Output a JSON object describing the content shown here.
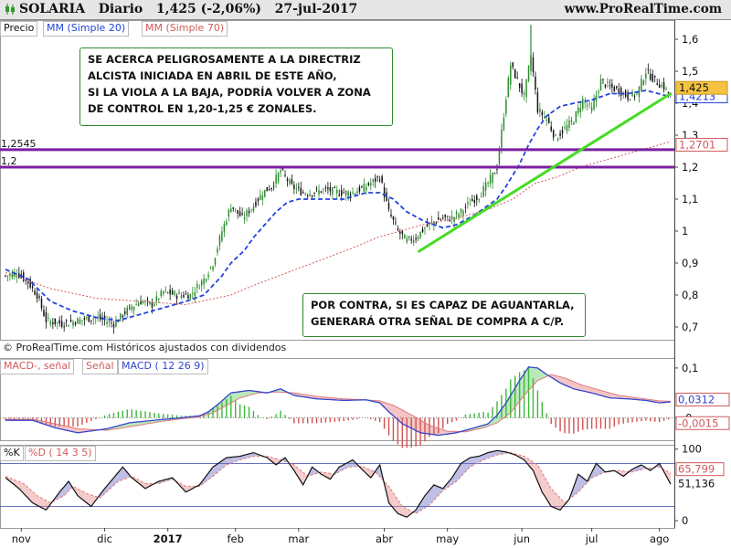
{
  "header": {
    "ticker": "SOLARIA",
    "period": "Diario",
    "price": "1,425 (-2,06%)",
    "date": "27-jul-2017",
    "site": "www.ProRealTime.com"
  },
  "legend_main": {
    "price": "Precio",
    "ma20": "MM (Simple 20)",
    "ma70": "MM (Simple 70)"
  },
  "legend_macd": {
    "hist": "MACD-, señal",
    "signal": "Señal",
    "macd": "MACD ( 12 26 9)"
  },
  "legend_stoch": {
    "k": "%K",
    "d": "%D ( 14 3 5)"
  },
  "copyright": "© ProRealTime.com  Históricos ajustados con dividendos",
  "notes": {
    "top": "SE ACERCA PELIGROSAMENTE A LA DIRECTRIZ\nALCISTA INICIADA EN ABRIL DE ESTE AÑO,\nSI LA VIOLA A LA BAJA, PODRÍA VOLVER A ZONA\nDE CONTROL EN 1,20-1,25 € ZONALES.",
    "bottom": "POR CONTRA, SI ES CAPAZ DE AGUANTARLA,\nGENERARÁ OTRA SEÑAL DE COMPRA A C/P."
  },
  "colors": {
    "up": "#2a8c2a",
    "down": "#111111",
    "ma20": "#2244dd",
    "ma70": "#d05a5a",
    "level": "#7a1fa0",
    "trend": "#44dd22",
    "macd": "#3344cc",
    "signal": "#e07a7a"
  },
  "chart_data": [
    {
      "type": "candlestick",
      "title": "SOLARIA Diario",
      "x_months": [
        "nov",
        "dic",
        "2017",
        "feb",
        "mar",
        "abr",
        "may",
        "jun",
        "jul",
        "ago"
      ],
      "y_ticks": [
        "0,7",
        "0,8",
        "0,9",
        "1",
        "1,1",
        "1,2",
        "1,3",
        "1,4",
        "1,5",
        "1,6"
      ],
      "ylim": [
        0.66,
        1.66
      ],
      "last_price": "1,425",
      "ma20_last": "1,4213",
      "ma70_last": "1,2701",
      "levels": [
        {
          "label": "1,2545",
          "value": 1.2545
        },
        {
          "label": "1,2",
          "value": 1.2
        }
      ],
      "trendline": {
        "from": {
          "date": "abr",
          "value": 0.935
        },
        "to": {
          "date": "jul",
          "value": 1.43
        }
      },
      "close_profile": [
        [
          0,
          0.86
        ],
        [
          5,
          0.87
        ],
        [
          10,
          0.84
        ],
        [
          14,
          0.8
        ],
        [
          18,
          0.72
        ],
        [
          25,
          0.71
        ],
        [
          32,
          0.72
        ],
        [
          40,
          0.73
        ],
        [
          48,
          0.71
        ],
        [
          55,
          0.76
        ],
        [
          60,
          0.78
        ],
        [
          65,
          0.77
        ],
        [
          70,
          0.81
        ],
        [
          76,
          0.8
        ],
        [
          82,
          0.8
        ],
        [
          88,
          0.85
        ],
        [
          92,
          0.9
        ],
        [
          96,
          1.0
        ],
        [
          100,
          1.08
        ],
        [
          105,
          1.04
        ],
        [
          110,
          1.08
        ],
        [
          114,
          1.12
        ],
        [
          118,
          1.14
        ],
        [
          122,
          1.19
        ],
        [
          127,
          1.14
        ],
        [
          132,
          1.12
        ],
        [
          136,
          1.12
        ],
        [
          142,
          1.13
        ],
        [
          148,
          1.12
        ],
        [
          154,
          1.12
        ],
        [
          160,
          1.14
        ],
        [
          166,
          1.17
        ],
        [
          170,
          1.06
        ],
        [
          174,
          1.0
        ],
        [
          178,
          0.97
        ],
        [
          182,
          0.98
        ],
        [
          186,
          1.01
        ],
        [
          190,
          1.03
        ],
        [
          194,
          1.04
        ],
        [
          198,
          1.04
        ],
        [
          202,
          1.06
        ],
        [
          206,
          1.09
        ],
        [
          210,
          1.11
        ],
        [
          214,
          1.15
        ],
        [
          218,
          1.2
        ],
        [
          222,
          1.42
        ],
        [
          224,
          1.52
        ],
        [
          227,
          1.47
        ],
        [
          230,
          1.42
        ],
        [
          233,
          1.55
        ],
        [
          236,
          1.38
        ],
        [
          240,
          1.35
        ],
        [
          244,
          1.29
        ],
        [
          248,
          1.32
        ],
        [
          252,
          1.35
        ],
        [
          256,
          1.41
        ],
        [
          260,
          1.38
        ],
        [
          264,
          1.47
        ],
        [
          268,
          1.45
        ],
        [
          272,
          1.44
        ],
        [
          276,
          1.42
        ],
        [
          280,
          1.43
        ],
        [
          284,
          1.5
        ],
        [
          288,
          1.47
        ],
        [
          292,
          1.45
        ],
        [
          295,
          1.42
        ]
      ],
      "ma20_profile": [
        [
          0,
          0.88
        ],
        [
          10,
          0.85
        ],
        [
          20,
          0.78
        ],
        [
          30,
          0.75
        ],
        [
          40,
          0.73
        ],
        [
          50,
          0.72
        ],
        [
          60,
          0.74
        ],
        [
          70,
          0.76
        ],
        [
          80,
          0.78
        ],
        [
          88,
          0.8
        ],
        [
          92,
          0.83
        ],
        [
          96,
          0.86
        ],
        [
          100,
          0.9
        ],
        [
          106,
          0.94
        ],
        [
          110,
          0.98
        ],
        [
          115,
          1.02
        ],
        [
          120,
          1.06
        ],
        [
          125,
          1.09
        ],
        [
          130,
          1.1
        ],
        [
          135,
          1.1
        ],
        [
          140,
          1.1
        ],
        [
          150,
          1.1
        ],
        [
          160,
          1.12
        ],
        [
          166,
          1.12
        ],
        [
          172,
          1.1
        ],
        [
          178,
          1.06
        ],
        [
          186,
          1.03
        ],
        [
          194,
          1.01
        ],
        [
          200,
          1.02
        ],
        [
          208,
          1.05
        ],
        [
          214,
          1.08
        ],
        [
          218,
          1.1
        ],
        [
          222,
          1.14
        ],
        [
          228,
          1.21
        ],
        [
          232,
          1.27
        ],
        [
          236,
          1.32
        ],
        [
          240,
          1.36
        ],
        [
          246,
          1.39
        ],
        [
          252,
          1.4
        ],
        [
          260,
          1.41
        ],
        [
          268,
          1.43
        ],
        [
          276,
          1.43
        ],
        [
          284,
          1.44
        ],
        [
          295,
          1.42
        ]
      ],
      "ma70_profile": [
        [
          0,
          0.87
        ],
        [
          20,
          0.82
        ],
        [
          40,
          0.79
        ],
        [
          60,
          0.78
        ],
        [
          80,
          0.77
        ],
        [
          100,
          0.8
        ],
        [
          110,
          0.83
        ],
        [
          125,
          0.87
        ],
        [
          140,
          0.91
        ],
        [
          155,
          0.95
        ],
        [
          165,
          0.98
        ],
        [
          175,
          1.0
        ],
        [
          185,
          1.02
        ],
        [
          200,
          1.04
        ],
        [
          215,
          1.07
        ],
        [
          225,
          1.1
        ],
        [
          235,
          1.15
        ],
        [
          245,
          1.17
        ],
        [
          255,
          1.2
        ],
        [
          265,
          1.22
        ],
        [
          275,
          1.24
        ],
        [
          285,
          1.26
        ],
        [
          295,
          1.28
        ]
      ]
    },
    {
      "type": "line",
      "title": "MACD ( 12 26 9)",
      "y_ticks": [
        "-0",
        "0,1"
      ],
      "ylim": [
        -0.045,
        0.12
      ],
      "labels": {
        "macd": "0,0312",
        "hist": "-0,0015"
      },
      "macd_profile": [
        [
          0,
          -0.005
        ],
        [
          12,
          -0.005
        ],
        [
          22,
          -0.02
        ],
        [
          32,
          -0.03
        ],
        [
          45,
          -0.022
        ],
        [
          55,
          -0.01
        ],
        [
          68,
          -0.004
        ],
        [
          78,
          0.0
        ],
        [
          86,
          0.004
        ],
        [
          90,
          0.012
        ],
        [
          95,
          0.03
        ],
        [
          100,
          0.05
        ],
        [
          108,
          0.055
        ],
        [
          116,
          0.05
        ],
        [
          122,
          0.058
        ],
        [
          128,
          0.045
        ],
        [
          138,
          0.038
        ],
        [
          150,
          0.035
        ],
        [
          160,
          0.036
        ],
        [
          166,
          0.03
        ],
        [
          170,
          0.012
        ],
        [
          176,
          -0.012
        ],
        [
          184,
          -0.03
        ],
        [
          192,
          -0.035
        ],
        [
          200,
          -0.03
        ],
        [
          208,
          -0.02
        ],
        [
          214,
          -0.012
        ],
        [
          218,
          0.005
        ],
        [
          222,
          0.03
        ],
        [
          228,
          0.075
        ],
        [
          232,
          0.102
        ],
        [
          236,
          0.1
        ],
        [
          240,
          0.087
        ],
        [
          246,
          0.07
        ],
        [
          252,
          0.058
        ],
        [
          260,
          0.05
        ],
        [
          268,
          0.04
        ],
        [
          276,
          0.038
        ],
        [
          284,
          0.035
        ],
        [
          290,
          0.03
        ],
        [
          295,
          0.032
        ]
      ],
      "signal_profile": [
        [
          0,
          -0.003
        ],
        [
          12,
          -0.003
        ],
        [
          22,
          -0.012
        ],
        [
          32,
          -0.022
        ],
        [
          45,
          -0.025
        ],
        [
          55,
          -0.018
        ],
        [
          68,
          -0.008
        ],
        [
          78,
          -0.002
        ],
        [
          86,
          0.002
        ],
        [
          92,
          0.01
        ],
        [
          98,
          0.025
        ],
        [
          104,
          0.04
        ],
        [
          112,
          0.05
        ],
        [
          120,
          0.052
        ],
        [
          128,
          0.05
        ],
        [
          138,
          0.043
        ],
        [
          150,
          0.038
        ],
        [
          160,
          0.036
        ],
        [
          166,
          0.034
        ],
        [
          172,
          0.025
        ],
        [
          180,
          0.006
        ],
        [
          188,
          -0.015
        ],
        [
          196,
          -0.027
        ],
        [
          204,
          -0.028
        ],
        [
          212,
          -0.02
        ],
        [
          218,
          -0.01
        ],
        [
          224,
          0.01
        ],
        [
          230,
          0.045
        ],
        [
          236,
          0.075
        ],
        [
          242,
          0.087
        ],
        [
          248,
          0.08
        ],
        [
          256,
          0.065
        ],
        [
          264,
          0.055
        ],
        [
          272,
          0.045
        ],
        [
          280,
          0.04
        ],
        [
          290,
          0.034
        ],
        [
          295,
          0.033
        ]
      ]
    },
    {
      "type": "line",
      "title": "%K %D ( 14 3 5)",
      "y_ticks": [
        "0",
        "100"
      ],
      "ylim": [
        -10,
        106
      ],
      "labels": {
        "k": "51,136",
        "d": "65,799"
      },
      "k_profile": [
        [
          0,
          60
        ],
        [
          6,
          45
        ],
        [
          12,
          25
        ],
        [
          18,
          15
        ],
        [
          24,
          40
        ],
        [
          28,
          55
        ],
        [
          32,
          35
        ],
        [
          38,
          20
        ],
        [
          44,
          45
        ],
        [
          52,
          75
        ],
        [
          56,
          60
        ],
        [
          62,
          45
        ],
        [
          68,
          55
        ],
        [
          74,
          60
        ],
        [
          80,
          40
        ],
        [
          86,
          50
        ],
        [
          92,
          75
        ],
        [
          98,
          88
        ],
        [
          104,
          90
        ],
        [
          110,
          95
        ],
        [
          116,
          88
        ],
        [
          120,
          78
        ],
        [
          124,
          88
        ],
        [
          128,
          70
        ],
        [
          132,
          50
        ],
        [
          136,
          75
        ],
        [
          140,
          65
        ],
        [
          144,
          58
        ],
        [
          148,
          75
        ],
        [
          154,
          85
        ],
        [
          158,
          72
        ],
        [
          162,
          60
        ],
        [
          166,
          78
        ],
        [
          170,
          25
        ],
        [
          174,
          10
        ],
        [
          178,
          5
        ],
        [
          182,
          15
        ],
        [
          186,
          35
        ],
        [
          190,
          50
        ],
        [
          194,
          45
        ],
        [
          198,
          60
        ],
        [
          202,
          80
        ],
        [
          206,
          88
        ],
        [
          210,
          90
        ],
        [
          214,
          95
        ],
        [
          218,
          98
        ],
        [
          222,
          96
        ],
        [
          226,
          92
        ],
        [
          230,
          85
        ],
        [
          234,
          70
        ],
        [
          238,
          40
        ],
        [
          242,
          20
        ],
        [
          246,
          15
        ],
        [
          250,
          30
        ],
        [
          254,
          65
        ],
        [
          258,
          55
        ],
        [
          262,
          80
        ],
        [
          266,
          68
        ],
        [
          270,
          70
        ],
        [
          274,
          62
        ],
        [
          278,
          72
        ],
        [
          282,
          78
        ],
        [
          286,
          70
        ],
        [
          290,
          80
        ],
        [
          295,
          51
        ]
      ],
      "d_profile": [
        [
          0,
          62
        ],
        [
          8,
          52
        ],
        [
          14,
          35
        ],
        [
          20,
          25
        ],
        [
          26,
          35
        ],
        [
          30,
          48
        ],
        [
          36,
          38
        ],
        [
          42,
          32
        ],
        [
          50,
          55
        ],
        [
          56,
          62
        ],
        [
          62,
          52
        ],
        [
          68,
          52
        ],
        [
          74,
          58
        ],
        [
          80,
          48
        ],
        [
          86,
          48
        ],
        [
          92,
          62
        ],
        [
          98,
          78
        ],
        [
          104,
          85
        ],
        [
          110,
          90
        ],
        [
          116,
          90
        ],
        [
          122,
          85
        ],
        [
          128,
          78
        ],
        [
          134,
          62
        ],
        [
          140,
          68
        ],
        [
          146,
          65
        ],
        [
          152,
          75
        ],
        [
          158,
          76
        ],
        [
          164,
          68
        ],
        [
          170,
          48
        ],
        [
          176,
          20
        ],
        [
          182,
          10
        ],
        [
          188,
          22
        ],
        [
          194,
          42
        ],
        [
          200,
          55
        ],
        [
          206,
          75
        ],
        [
          212,
          85
        ],
        [
          218,
          92
        ],
        [
          224,
          95
        ],
        [
          230,
          90
        ],
        [
          236,
          78
        ],
        [
          242,
          45
        ],
        [
          248,
          25
        ],
        [
          254,
          40
        ],
        [
          260,
          60
        ],
        [
          266,
          68
        ],
        [
          272,
          70
        ],
        [
          278,
          68
        ],
        [
          284,
          73
        ],
        [
          290,
          75
        ],
        [
          295,
          66
        ]
      ]
    }
  ]
}
